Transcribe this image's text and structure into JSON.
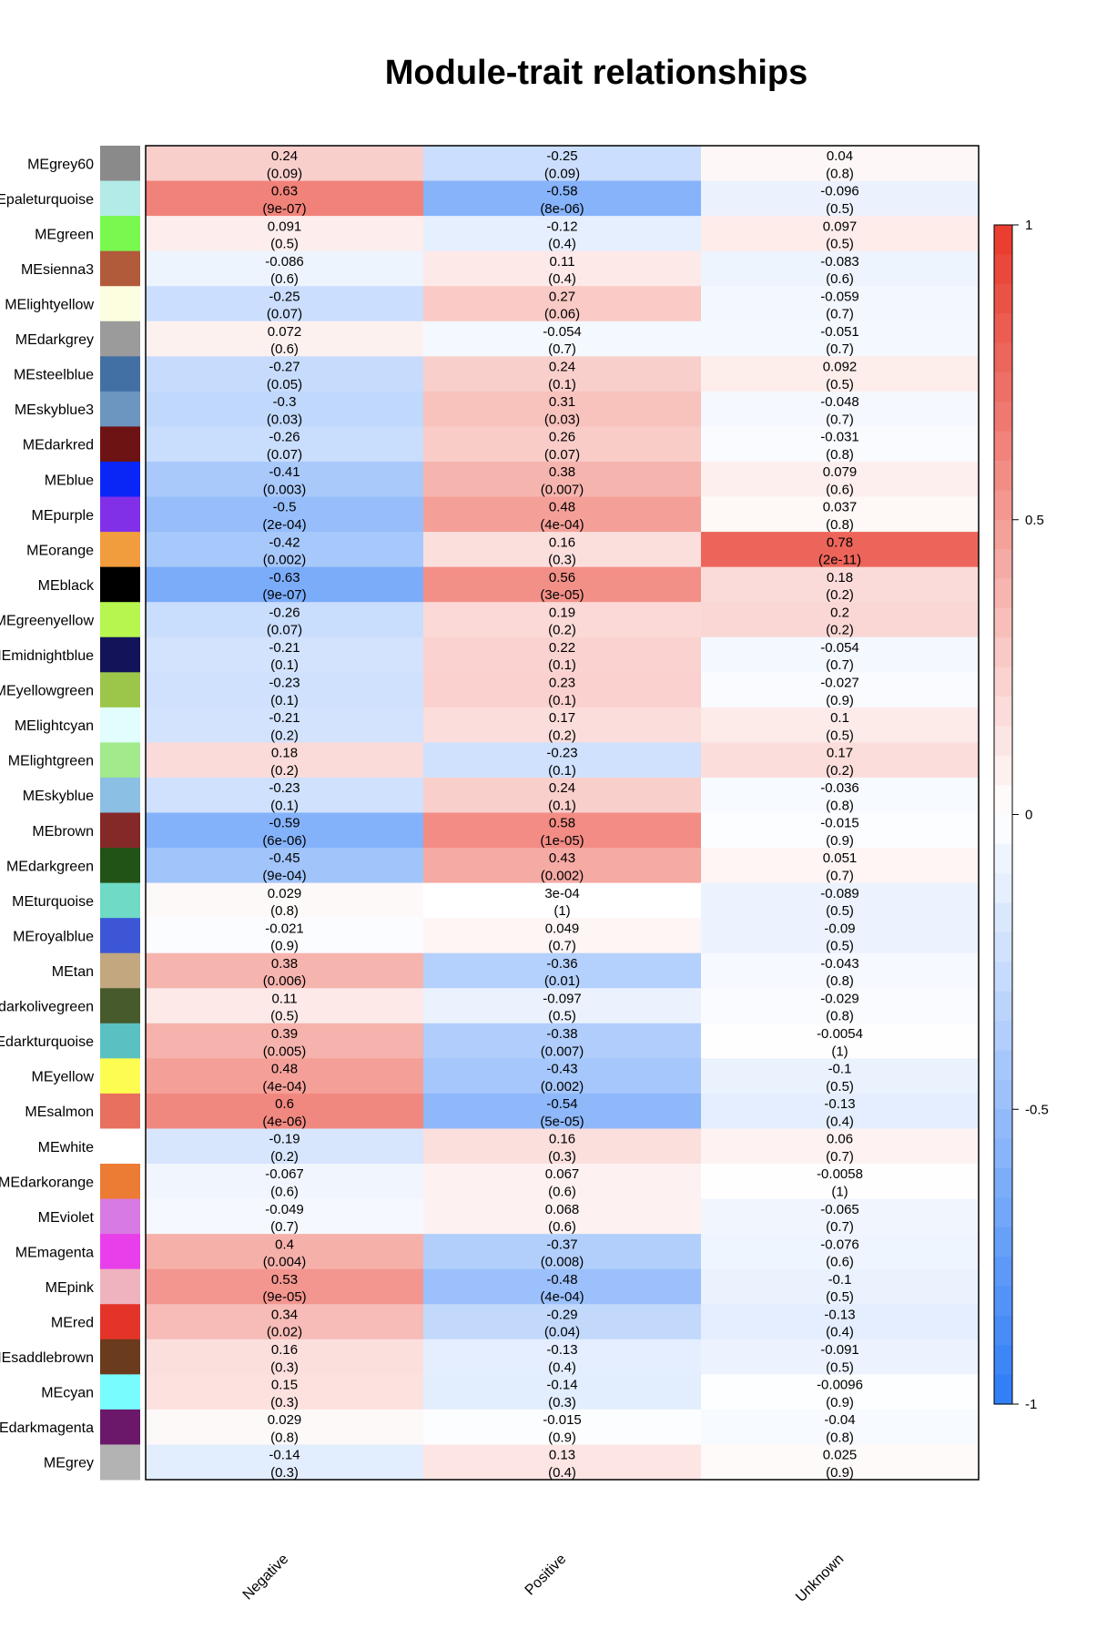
{
  "chart_data": {
    "type": "heatmap",
    "title": "Module-trait relationships",
    "columns": [
      "Negative",
      "Positive",
      "Unknown"
    ],
    "colorbar": {
      "min": -1,
      "max": 1,
      "ticks": [
        {
          "value": 1,
          "label": "1"
        },
        {
          "value": 0.5,
          "label": "0.5"
        },
        {
          "value": 0,
          "label": "0"
        },
        {
          "value": -0.5,
          "label": "-0.5"
        },
        {
          "value": -1,
          "label": "-1"
        }
      ],
      "low_color": "#2e7cf6",
      "mid_color": "#ffffff",
      "high_color": "#e8392b"
    },
    "rows": [
      {
        "label": "MEgrey60",
        "color": "#8a8a8a",
        "values": [
          0.24,
          -0.25,
          0.04
        ],
        "pvalues": [
          "(0.09)",
          "(0.09)",
          "(0.8)"
        ],
        "value_labels": [
          "0.24",
          "-0.25",
          "0.04"
        ]
      },
      {
        "label": "MEpaleturquoise",
        "color": "#b3ebe8",
        "values": [
          0.63,
          -0.58,
          -0.096
        ],
        "pvalues": [
          "(9e-07)",
          "(8e-06)",
          "(0.5)"
        ],
        "value_labels": [
          "0.63",
          "-0.58",
          "-0.096"
        ]
      },
      {
        "label": "MEgreen",
        "color": "#79f94f",
        "values": [
          0.091,
          -0.12,
          0.097
        ],
        "pvalues": [
          "(0.5)",
          "(0.4)",
          "(0.5)"
        ],
        "value_labels": [
          "0.091",
          "-0.12",
          "0.097"
        ]
      },
      {
        "label": "MEsienna3",
        "color": "#b25b3b",
        "values": [
          -0.086,
          0.11,
          -0.083
        ],
        "pvalues": [
          "(0.6)",
          "(0.4)",
          "(0.6)"
        ],
        "value_labels": [
          "-0.086",
          "0.11",
          "-0.083"
        ]
      },
      {
        "label": "MElightyellow",
        "color": "#fdfde0",
        "values": [
          -0.25,
          0.27,
          -0.059
        ],
        "pvalues": [
          "(0.07)",
          "(0.06)",
          "(0.7)"
        ],
        "value_labels": [
          "-0.25",
          "0.27",
          "-0.059"
        ]
      },
      {
        "label": "MEdarkgrey",
        "color": "#9b9b9b",
        "values": [
          0.072,
          -0.054,
          -0.051
        ],
        "pvalues": [
          "(0.6)",
          "(0.7)",
          "(0.7)"
        ],
        "value_labels": [
          "0.072",
          "-0.054",
          "-0.051"
        ]
      },
      {
        "label": "MEsteelblue",
        "color": "#4370a4",
        "values": [
          -0.27,
          0.24,
          0.092
        ],
        "pvalues": [
          "(0.05)",
          "(0.1)",
          "(0.5)"
        ],
        "value_labels": [
          "-0.27",
          "0.24",
          "0.092"
        ]
      },
      {
        "label": "MEskyblue3",
        "color": "#6c95bf",
        "values": [
          -0.3,
          0.31,
          -0.048
        ],
        "pvalues": [
          "(0.03)",
          "(0.03)",
          "(0.7)"
        ],
        "value_labels": [
          "-0.3",
          "0.31",
          "-0.048"
        ]
      },
      {
        "label": "MEdarkred",
        "color": "#6e1313",
        "values": [
          -0.26,
          0.26,
          -0.031
        ],
        "pvalues": [
          "(0.07)",
          "(0.07)",
          "(0.8)"
        ],
        "value_labels": [
          "-0.26",
          "0.26",
          "-0.031"
        ]
      },
      {
        "label": "MEblue",
        "color": "#0a26f6",
        "values": [
          -0.41,
          0.38,
          0.079
        ],
        "pvalues": [
          "(0.003)",
          "(0.007)",
          "(0.6)"
        ],
        "value_labels": [
          "-0.41",
          "0.38",
          "0.079"
        ]
      },
      {
        "label": "MEpurple",
        "color": "#8130e8",
        "values": [
          -0.5,
          0.48,
          0.037
        ],
        "pvalues": [
          "(2e-04)",
          "(4e-04)",
          "(0.8)"
        ],
        "value_labels": [
          "-0.5",
          "0.48",
          "0.037"
        ]
      },
      {
        "label": "MEorange",
        "color": "#f19c3d",
        "values": [
          -0.42,
          0.16,
          0.78
        ],
        "pvalues": [
          "(0.002)",
          "(0.3)",
          "(2e-11)"
        ],
        "value_labels": [
          "-0.42",
          "0.16",
          "0.78"
        ]
      },
      {
        "label": "MEblack",
        "color": "#000000",
        "values": [
          -0.63,
          0.56,
          0.18
        ],
        "pvalues": [
          "(9e-07)",
          "(3e-05)",
          "(0.2)"
        ],
        "value_labels": [
          "-0.63",
          "0.56",
          "0.18"
        ]
      },
      {
        "label": "MEgreenyellow",
        "color": "#b6f64f",
        "values": [
          -0.26,
          0.19,
          0.2
        ],
        "pvalues": [
          "(0.07)",
          "(0.2)",
          "(0.2)"
        ],
        "value_labels": [
          "-0.26",
          "0.19",
          "0.2"
        ]
      },
      {
        "label": "MEmidnightblue",
        "color": "#13135a",
        "values": [
          -0.21,
          0.22,
          -0.054
        ],
        "pvalues": [
          "(0.1)",
          "(0.1)",
          "(0.7)"
        ],
        "value_labels": [
          "-0.21",
          "0.22",
          "-0.054"
        ]
      },
      {
        "label": "MEyellowgreen",
        "color": "#9bc649",
        "values": [
          -0.23,
          0.23,
          -0.027
        ],
        "pvalues": [
          "(0.1)",
          "(0.1)",
          "(0.9)"
        ],
        "value_labels": [
          "-0.23",
          "0.23",
          "-0.027"
        ]
      },
      {
        "label": "MElightcyan",
        "color": "#e1fdfd",
        "values": [
          -0.21,
          0.17,
          0.1
        ],
        "pvalues": [
          "(0.2)",
          "(0.2)",
          "(0.5)"
        ],
        "value_labels": [
          "-0.21",
          "0.17",
          "0.1"
        ]
      },
      {
        "label": "MElightgreen",
        "color": "#a2ea8b",
        "values": [
          0.18,
          -0.23,
          0.17
        ],
        "pvalues": [
          "(0.2)",
          "(0.1)",
          "(0.2)"
        ],
        "value_labels": [
          "0.18",
          "-0.23",
          "0.17"
        ]
      },
      {
        "label": "MEskyblue",
        "color": "#8bbfe3",
        "values": [
          -0.23,
          0.24,
          -0.036
        ],
        "pvalues": [
          "(0.1)",
          "(0.1)",
          "(0.8)"
        ],
        "value_labels": [
          "-0.23",
          "0.24",
          "-0.036"
        ]
      },
      {
        "label": "MEbrown",
        "color": "#852828",
        "values": [
          -0.59,
          0.58,
          -0.015
        ],
        "pvalues": [
          "(6e-06)",
          "(1e-05)",
          "(0.9)"
        ],
        "value_labels": [
          "-0.59",
          "0.58",
          "-0.015"
        ]
      },
      {
        "label": "MEdarkgreen",
        "color": "#215316",
        "values": [
          -0.45,
          0.43,
          0.051
        ],
        "pvalues": [
          "(9e-04)",
          "(0.002)",
          "(0.7)"
        ],
        "value_labels": [
          "-0.45",
          "0.43",
          "0.051"
        ]
      },
      {
        "label": "MEturquoise",
        "color": "#6fdac5",
        "values": [
          0.029,
          0.0003,
          -0.089
        ],
        "pvalues": [
          "(0.8)",
          "(1)",
          "(0.5)"
        ],
        "value_labels": [
          "0.029",
          "3e-04",
          "-0.089"
        ]
      },
      {
        "label": "MEroyalblue",
        "color": "#3c56d6",
        "values": [
          -0.021,
          0.049,
          -0.09
        ],
        "pvalues": [
          "(0.9)",
          "(0.7)",
          "(0.5)"
        ],
        "value_labels": [
          "-0.021",
          "0.049",
          "-0.09"
        ]
      },
      {
        "label": "MEtan",
        "color": "#c2a77f",
        "values": [
          0.38,
          -0.36,
          -0.043
        ],
        "pvalues": [
          "(0.006)",
          "(0.01)",
          "(0.8)"
        ],
        "value_labels": [
          "0.38",
          "-0.36",
          "-0.043"
        ]
      },
      {
        "label": "MEdarkolivegreen",
        "color": "#465a2c",
        "values": [
          0.11,
          -0.097,
          -0.029
        ],
        "pvalues": [
          "(0.5)",
          "(0.5)",
          "(0.8)"
        ],
        "value_labels": [
          "0.11",
          "-0.097",
          "-0.029"
        ]
      },
      {
        "label": "MEdarkturquoise",
        "color": "#5bc0c2",
        "values": [
          0.39,
          -0.38,
          -0.0054
        ],
        "pvalues": [
          "(0.005)",
          "(0.007)",
          "(1)"
        ],
        "value_labels": [
          "0.39",
          "-0.38",
          "-0.0054"
        ]
      },
      {
        "label": "MEyellow",
        "color": "#fdfd51",
        "values": [
          0.48,
          -0.43,
          -0.1
        ],
        "pvalues": [
          "(4e-04)",
          "(0.002)",
          "(0.5)"
        ],
        "value_labels": [
          "0.48",
          "-0.43",
          "-0.1"
        ]
      },
      {
        "label": "MEsalmon",
        "color": "#e7705f",
        "values": [
          0.6,
          -0.54,
          -0.13
        ],
        "pvalues": [
          "(4e-06)",
          "(5e-05)",
          "(0.4)"
        ],
        "value_labels": [
          "0.6",
          "-0.54",
          "-0.13"
        ]
      },
      {
        "label": "MEwhite",
        "color": "#ffffff",
        "values": [
          -0.19,
          0.16,
          0.06
        ],
        "pvalues": [
          "(0.2)",
          "(0.3)",
          "(0.7)"
        ],
        "value_labels": [
          "-0.19",
          "0.16",
          "0.06"
        ]
      },
      {
        "label": "MEdarkorange",
        "color": "#ec7b33",
        "values": [
          -0.067,
          0.067,
          -0.0058
        ],
        "pvalues": [
          "(0.6)",
          "(0.6)",
          "(1)"
        ],
        "value_labels": [
          "-0.067",
          "0.067",
          "-0.0058"
        ]
      },
      {
        "label": "MEviolet",
        "color": "#d87ae3",
        "values": [
          -0.049,
          0.068,
          -0.065
        ],
        "pvalues": [
          "(0.7)",
          "(0.6)",
          "(0.7)"
        ],
        "value_labels": [
          "-0.049",
          "0.068",
          "-0.065"
        ]
      },
      {
        "label": "MEmagenta",
        "color": "#e83fea",
        "values": [
          0.4,
          -0.37,
          -0.076
        ],
        "pvalues": [
          "(0.004)",
          "(0.008)",
          "(0.6)"
        ],
        "value_labels": [
          "0.4",
          "-0.37",
          "-0.076"
        ]
      },
      {
        "label": "MEpink",
        "color": "#efb3c0",
        "values": [
          0.53,
          -0.48,
          -0.1
        ],
        "pvalues": [
          "(9e-05)",
          "(4e-04)",
          "(0.5)"
        ],
        "value_labels": [
          "0.53",
          "-0.48",
          "-0.1"
        ]
      },
      {
        "label": "MEred",
        "color": "#e43429",
        "values": [
          0.34,
          -0.29,
          -0.13
        ],
        "pvalues": [
          "(0.02)",
          "(0.04)",
          "(0.4)"
        ],
        "value_labels": [
          "0.34",
          "-0.29",
          "-0.13"
        ]
      },
      {
        "label": "MEsaddlebrown",
        "color": "#6b3b1d",
        "values": [
          0.16,
          -0.13,
          -0.091
        ],
        "pvalues": [
          "(0.3)",
          "(0.4)",
          "(0.5)"
        ],
        "value_labels": [
          "0.16",
          "-0.13",
          "-0.091"
        ]
      },
      {
        "label": "MEcyan",
        "color": "#78fcfd",
        "values": [
          0.15,
          -0.14,
          -0.0096
        ],
        "pvalues": [
          "(0.3)",
          "(0.3)",
          "(0.9)"
        ],
        "value_labels": [
          "0.15",
          "-0.14",
          "-0.0096"
        ]
      },
      {
        "label": "MEdarkmagenta",
        "color": "#6b186b",
        "values": [
          0.029,
          -0.015,
          -0.04
        ],
        "pvalues": [
          "(0.8)",
          "(0.9)",
          "(0.8)"
        ],
        "value_labels": [
          "0.029",
          "-0.015",
          "-0.04"
        ]
      },
      {
        "label": "MEgrey",
        "color": "#b3b3b3",
        "values": [
          -0.14,
          0.13,
          0.025
        ],
        "pvalues": [
          "(0.3)",
          "(0.4)",
          "(0.9)"
        ],
        "value_labels": [
          "-0.14",
          "0.13",
          "0.025"
        ]
      }
    ]
  }
}
